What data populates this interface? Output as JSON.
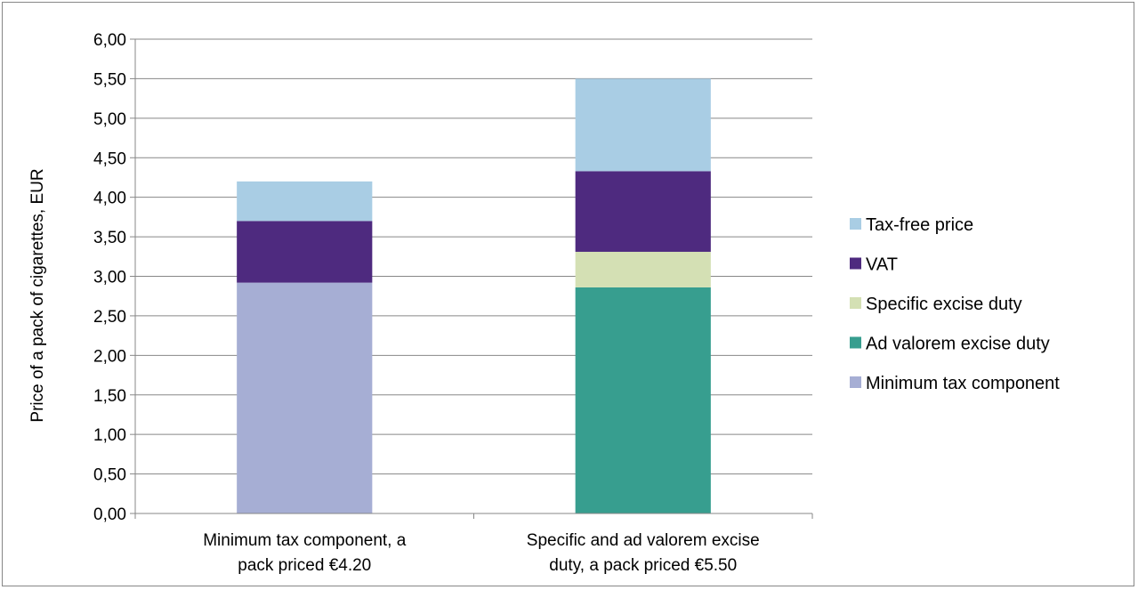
{
  "chart_data": {
    "type": "bar",
    "stacked": true,
    "categories": [
      [
        "Minimum tax component, a",
        "pack priced €4.20"
      ],
      [
        "Specific and ad valorem excise",
        "duty, a pack priced €5.50"
      ]
    ],
    "ylabel": "Price of a pack of cigarettes, EUR",
    "ylim": [
      0,
      6
    ],
    "ytick_step": 0.5,
    "ytick_labels": [
      "0,00",
      "0,50",
      "1,00",
      "1,50",
      "2,00",
      "2,50",
      "3,00",
      "3,50",
      "4,00",
      "4,50",
      "5,00",
      "5,50",
      "6,00"
    ],
    "grid": true,
    "legend_position": "right",
    "series": [
      {
        "name": "Minimum tax component",
        "color": "#a6aed4",
        "values": [
          2.92,
          0
        ]
      },
      {
        "name": "Ad valorem excise duty",
        "color": "#379e8f",
        "values": [
          0,
          2.86
        ]
      },
      {
        "name": "Specific excise duty",
        "color": "#d4e0b4",
        "values": [
          0,
          0.45
        ]
      },
      {
        "name": "VAT",
        "color": "#4e2a7f",
        "values": [
          0.78,
          1.02
        ]
      },
      {
        "name": "Tax-free price",
        "color": "#a9cde4",
        "values": [
          0.5,
          1.17
        ]
      }
    ],
    "legend_order": [
      "Tax-free price",
      "VAT",
      "Specific excise duty",
      "Ad valorem excise duty",
      "Minimum tax component"
    ]
  }
}
